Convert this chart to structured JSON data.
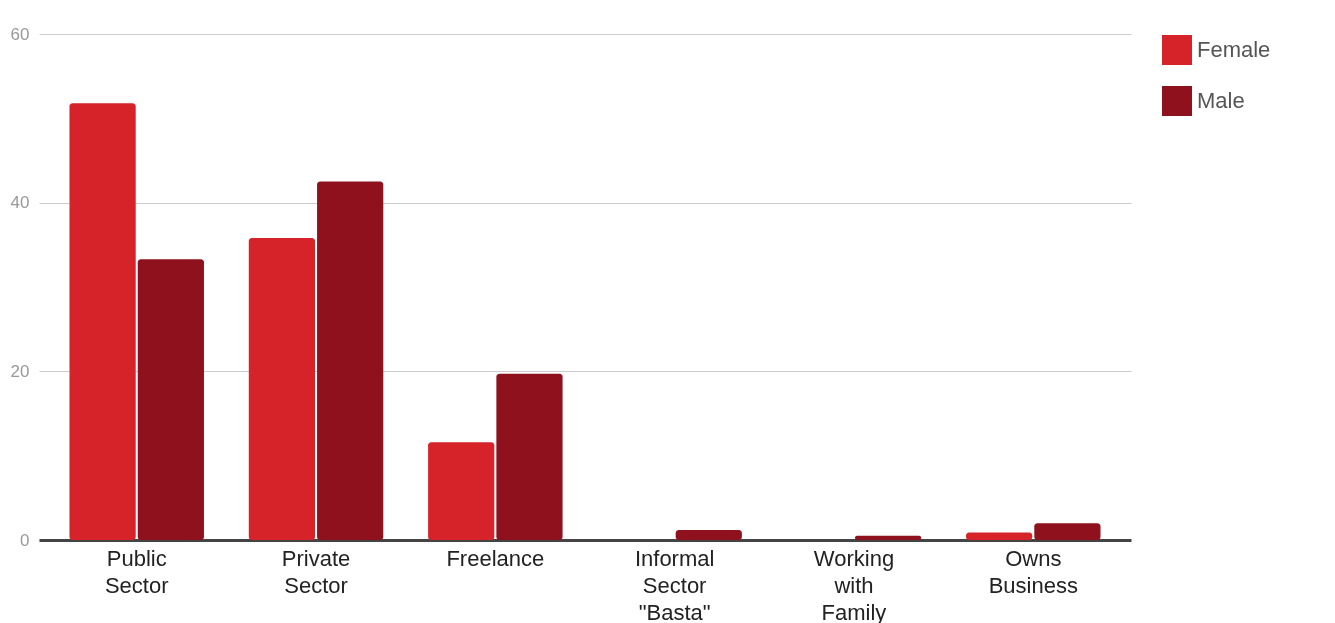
{
  "chart_data": {
    "type": "bar",
    "categories": [
      "Public Sector",
      "Private Sector",
      "Freelance",
      "Informal Sector \"Basta\"",
      "Working with Family",
      "Owns Business"
    ],
    "series": [
      {
        "name": "Female",
        "color": "#d62229",
        "values": [
          51.8,
          35.8,
          11.6,
          0,
          0,
          0.9
        ]
      },
      {
        "name": "Male",
        "color": "#8f111e",
        "values": [
          33.3,
          42.5,
          19.7,
          1.2,
          0.5,
          2.0
        ]
      }
    ],
    "ylim": [
      0,
      60
    ],
    "yticks": [
      0,
      20,
      40,
      60
    ],
    "grid": "y",
    "legend": "top right"
  }
}
